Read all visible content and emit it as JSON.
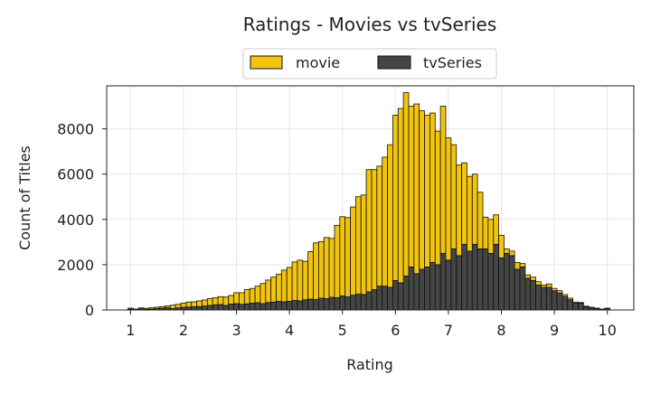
{
  "chart_data": {
    "type": "bar",
    "stacked": true,
    "title": "Ratings - Movies vs tvSeries",
    "xlabel": "Rating",
    "ylabel": "Count of Titles",
    "xlim": [
      0.55,
      10.5
    ],
    "ylim": [
      0,
      9900
    ],
    "xticks": [
      1,
      2,
      3,
      4,
      5,
      6,
      7,
      8,
      9,
      10
    ],
    "yticks": [
      0,
      2000,
      4000,
      6000,
      8000
    ],
    "grid": true,
    "legend_position": "top-center",
    "bin_width": 0.1,
    "x": [
      1.0,
      1.1,
      1.2,
      1.3,
      1.4,
      1.5,
      1.6,
      1.7,
      1.8,
      1.9,
      2.0,
      2.1,
      2.2,
      2.3,
      2.4,
      2.5,
      2.6,
      2.7,
      2.8,
      2.9,
      3.0,
      3.1,
      3.2,
      3.3,
      3.4,
      3.5,
      3.6,
      3.7,
      3.8,
      3.9,
      4.0,
      4.1,
      4.2,
      4.3,
      4.4,
      4.5,
      4.6,
      4.7,
      4.8,
      4.9,
      5.0,
      5.1,
      5.2,
      5.3,
      5.4,
      5.5,
      5.6,
      5.7,
      5.8,
      5.9,
      6.0,
      6.1,
      6.2,
      6.3,
      6.4,
      6.5,
      6.6,
      6.7,
      6.8,
      6.9,
      7.0,
      7.1,
      7.2,
      7.3,
      7.4,
      7.5,
      7.6,
      7.7,
      7.8,
      7.9,
      8.0,
      8.1,
      8.2,
      8.3,
      8.4,
      8.5,
      8.6,
      8.7,
      8.8,
      8.9,
      9.0,
      9.1,
      9.2,
      9.3,
      9.4,
      9.5,
      9.6,
      9.7,
      9.8,
      9.9,
      10.0
    ],
    "series": [
      {
        "name": "tvSeries",
        "color": "#454545",
        "values": [
          40,
          20,
          50,
          30,
          40,
          60,
          80,
          100,
          60,
          90,
          120,
          130,
          140,
          150,
          170,
          200,
          230,
          240,
          200,
          260,
          280,
          250,
          270,
          300,
          320,
          280,
          330,
          350,
          380,
          360,
          380,
          420,
          400,
          450,
          480,
          460,
          520,
          500,
          560,
          540,
          620,
          580,
          650,
          700,
          680,
          800,
          900,
          1050,
          1050,
          1000,
          1300,
          1200,
          1500,
          1900,
          1600,
          1800,
          1900,
          2100,
          2000,
          2500,
          2200,
          2700,
          2400,
          2900,
          2600,
          2900,
          2700,
          2700,
          2500,
          2900,
          2300,
          2500,
          2400,
          1800,
          1900,
          1400,
          1300,
          1100,
          1000,
          1000,
          850,
          750,
          600,
          450,
          300,
          300,
          150,
          100,
          60,
          30,
          70
        ]
      },
      {
        "name": "movie",
        "color": "#f1c40f",
        "values": [
          40,
          20,
          40,
          40,
          60,
          60,
          70,
          80,
          150,
          160,
          180,
          220,
          220,
          250,
          270,
          300,
          310,
          350,
          370,
          380,
          480,
          510,
          630,
          650,
          730,
          890,
          990,
          1100,
          1200,
          1400,
          1500,
          1700,
          1800,
          1700,
          2100,
          2500,
          2500,
          2700,
          2600,
          3200,
          3500,
          3500,
          3900,
          4300,
          4400,
          5400,
          5300,
          5300,
          5700,
          6300,
          7300,
          7700,
          8100,
          7100,
          7500,
          7000,
          6700,
          6600,
          5900,
          6500,
          5400,
          4600,
          4000,
          3600,
          3300,
          3100,
          2500,
          1400,
          1500,
          1300,
          1000,
          200,
          200,
          300,
          150,
          150,
          150,
          150,
          100,
          150,
          100,
          100,
          80,
          70,
          50,
          30,
          20,
          20,
          20,
          10,
          10
        ]
      }
    ],
    "legend": [
      {
        "label": "movie",
        "color": "#f1c40f"
      },
      {
        "label": "tvSeries",
        "color": "#454545"
      }
    ]
  }
}
